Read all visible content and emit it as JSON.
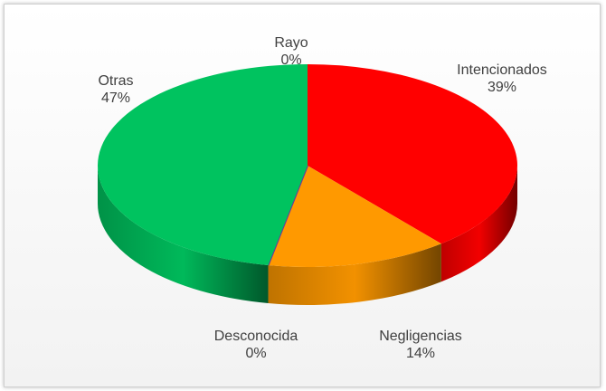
{
  "chart_data": {
    "type": "pie",
    "categories": [
      "Rayo",
      "Intencionados",
      "Negligencias",
      "Desconocida",
      "Otras"
    ],
    "values": [
      0,
      39,
      14,
      0,
      47
    ],
    "value_labels": [
      "0%",
      "39%",
      "14%",
      "0%",
      "47%"
    ],
    "colors": [
      "#4472c4",
      "#ff0000",
      "#ff9900",
      "#7030a0",
      "#00c35f"
    ]
  }
}
